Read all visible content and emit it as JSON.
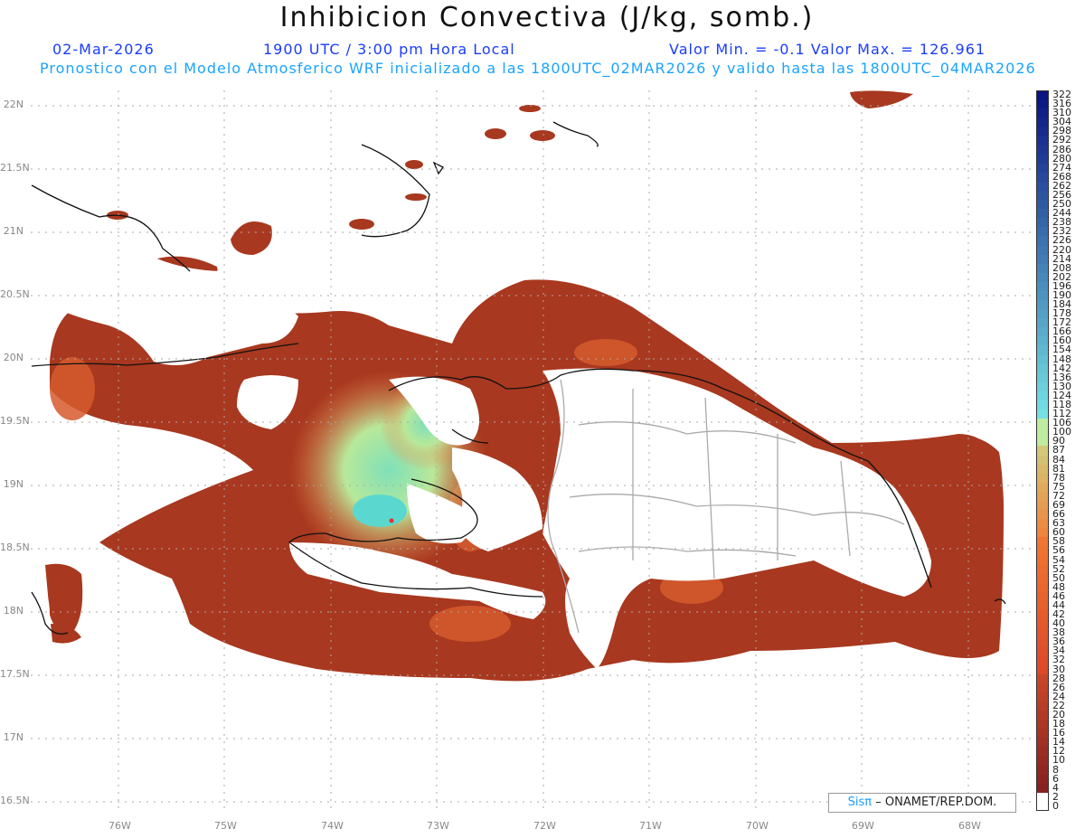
{
  "header": {
    "title": "Inhibicion Convectiva (J/kg, somb.)",
    "date": "02-Mar-2026",
    "time": "1900 UTC / 3:00 pm Hora Local",
    "minmax": "Valor Min. = -0.1  Valor Max. = 126.961",
    "forecast": "Pronostico con el Modelo Atmosferico WRF inicializado a las 1800UTC_02MAR2026 y valido hasta las  1800UTC_04MAR2026"
  },
  "axes": {
    "lat_labels": [
      "22N",
      "21.5N",
      "21N",
      "20.5N",
      "20N",
      "19.5N",
      "19N",
      "18.5N",
      "18N",
      "17.5N",
      "17N",
      "16.5N"
    ],
    "lon_labels": [
      "76W",
      "75W",
      "74W",
      "73W",
      "72W",
      "71W",
      "70W",
      "69W",
      "68W"
    ]
  },
  "credit": {
    "sis": "Sisπ",
    "text": "– ONAMET/REP.DOM."
  },
  "legend": {
    "labels": [
      "322",
      "316",
      "310",
      "304",
      "298",
      "292",
      "286",
      "280",
      "274",
      "268",
      "262",
      "256",
      "250",
      "244",
      "238",
      "232",
      "226",
      "220",
      "214",
      "208",
      "202",
      "196",
      "190",
      "184",
      "178",
      "172",
      "166",
      "160",
      "154",
      "148",
      "142",
      "136",
      "130",
      "124",
      "118",
      "112",
      "106",
      "100",
      "90",
      "87",
      "84",
      "81",
      "78",
      "75",
      "72",
      "69",
      "66",
      "63",
      "60",
      "58",
      "56",
      "54",
      "52",
      "50",
      "48",
      "46",
      "44",
      "42",
      "40",
      "38",
      "36",
      "34",
      "32",
      "30",
      "28",
      "26",
      "24",
      "22",
      "20",
      "18",
      "16",
      "14",
      "12",
      "10",
      "8",
      "6",
      "4",
      "2",
      "0"
    ]
  },
  "colors": {
    "low": "#8b2a1e",
    "mid": "#e86a2a",
    "high": "#a8eeb0",
    "peak": "#5ad8d0"
  }
}
